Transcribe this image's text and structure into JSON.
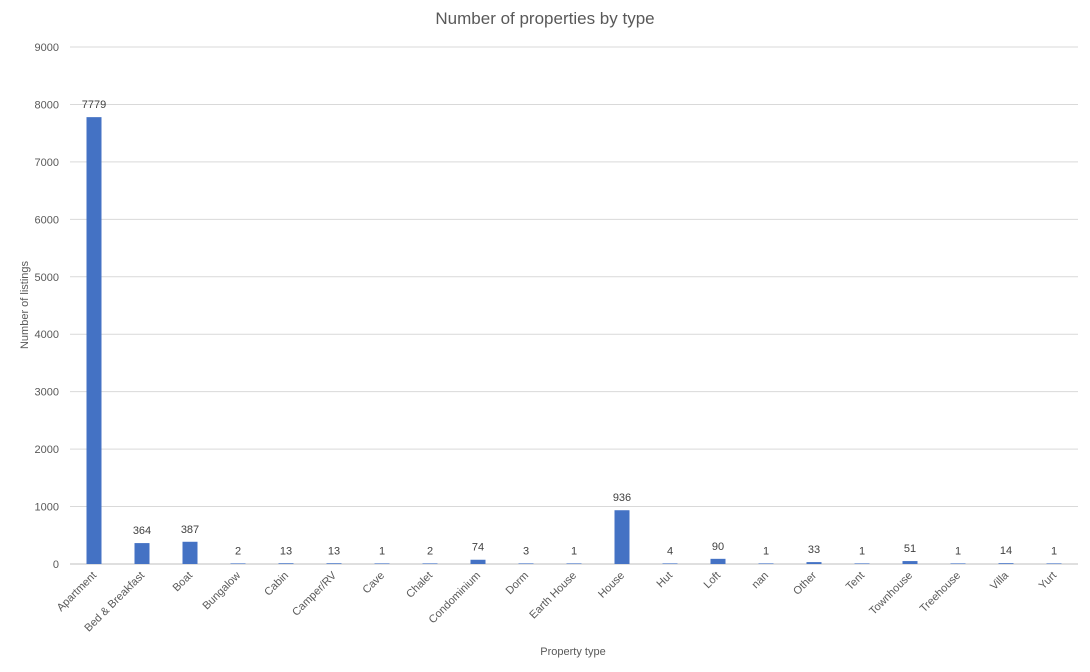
{
  "chart_data": {
    "type": "bar",
    "title": "Number of properties by type",
    "xlabel": "Property type",
    "ylabel": "Number of listings",
    "ylim": [
      0,
      9000
    ],
    "yticks": [
      0,
      1000,
      2000,
      3000,
      4000,
      5000,
      6000,
      7000,
      8000,
      9000
    ],
    "grid": true,
    "legend": "none",
    "bar_color": "#4472C4",
    "categories": [
      "Apartment",
      "Bed & Breakfast",
      "Boat",
      "Bungalow",
      "Cabin",
      "Camper/RV",
      "Cave",
      "Chalet",
      "Condominium",
      "Dorm",
      "Earth House",
      "House",
      "Hut",
      "Loft",
      "nan",
      "Other",
      "Tent",
      "Townhouse",
      "Treehouse",
      "Villa",
      "Yurt"
    ],
    "values": [
      7779,
      364,
      387,
      2,
      13,
      13,
      1,
      2,
      74,
      3,
      1,
      936,
      4,
      90,
      1,
      33,
      1,
      51,
      1,
      14,
      1
    ],
    "data_labels": [
      "7779",
      "364",
      "387",
      "2",
      "13",
      "13",
      "1",
      "2",
      "74",
      "3",
      "1",
      "936",
      "4",
      "90",
      "1",
      "33",
      "1",
      "51",
      "1",
      "14",
      "1"
    ],
    "ytick_labels": [
      "0",
      "1000",
      "2000",
      "3000",
      "4000",
      "5000",
      "6000",
      "7000",
      "8000",
      "9000"
    ]
  }
}
